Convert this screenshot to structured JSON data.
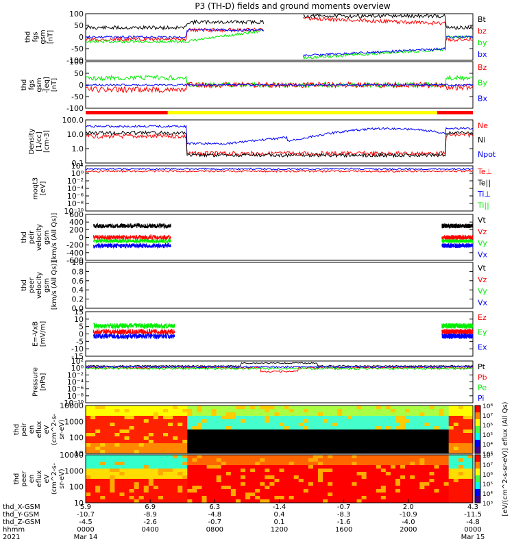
{
  "title": "P3 (TH-D) fields and ground moments overview",
  "colors": {
    "black": "#000000",
    "red": "#ff0000",
    "green": "#00ee00",
    "blue": "#0000ff",
    "yellow": "#ffff00"
  },
  "mode_bar": [
    {
      "from": 0,
      "to": 0.212,
      "color": "#ff0000"
    },
    {
      "from": 0.212,
      "to": 0.908,
      "color": "#ffff00"
    },
    {
      "from": 0.908,
      "to": 1,
      "color": "#ff0000"
    }
  ],
  "chart_data": [
    {
      "type": "line",
      "id": "p1",
      "ylabel": [
        "thd",
        "fgs",
        "gsm",
        "[nT]"
      ],
      "yticks": [
        "100",
        "50",
        "0",
        "-50",
        "-100"
      ],
      "legend": [
        {
          "text": "Bt",
          "color": "#000000"
        },
        {
          "text": "bz",
          "color": "#ff0000"
        },
        {
          "text": "by",
          "color": "#00ee00"
        },
        {
          "text": "bx",
          "color": "#0000ff"
        }
      ]
    },
    {
      "type": "line",
      "id": "p2",
      "ylabel": [
        "thd",
        "fgs",
        "gsm",
        "-[eq]",
        "[nT]"
      ],
      "yticks": [
        "100",
        "50",
        "0",
        "-50",
        "-100"
      ],
      "legend": [
        {
          "text": "Bz",
          "color": "#ff0000"
        },
        {
          "text": "By",
          "color": "#00ee00"
        },
        {
          "text": "Bx",
          "color": "#0000ff"
        }
      ]
    },
    {
      "type": "line",
      "id": "p3",
      "ylabel": [
        "Density",
        "[1/cc]",
        "[cm-3]"
      ],
      "yticks": [
        "100.0",
        "10.0",
        "1.0",
        "0.1"
      ],
      "legend": [
        {
          "text": "Ne",
          "color": "#ff0000"
        },
        {
          "text": "Ni",
          "color": "#000000"
        },
        {
          "text": "Npot",
          "color": "#0000ff"
        }
      ]
    },
    {
      "type": "line",
      "id": "p4",
      "ylabel": [
        "moqt3",
        "[eV]"
      ],
      "yticks": [
        "10²",
        "10⁰",
        "10⁻²",
        "10⁻⁴",
        "10⁻⁶",
        "10⁻⁸",
        "10⁻¹⁰"
      ],
      "legend": [
        {
          "text": "Te⊥",
          "color": "#ff0000"
        },
        {
          "text": "Te||",
          "color": "#000000"
        },
        {
          "text": "Ti⊥",
          "color": "#0000ff"
        },
        {
          "text": "Ti||",
          "color": "#00ee00"
        }
      ]
    },
    {
      "type": "line",
      "id": "p5",
      "ylabel": [
        "thd",
        "peir",
        "velocity",
        "gsm",
        "[km/s (All Qs)]"
      ],
      "yticks": [
        "600",
        "400",
        "200",
        "0",
        "-200",
        "-400",
        "-600"
      ],
      "legend": [
        {
          "text": "Vt",
          "color": "#000000"
        },
        {
          "text": "Vz",
          "color": "#ff0000"
        },
        {
          "text": "Vy",
          "color": "#00ee00"
        },
        {
          "text": "Vx",
          "color": "#0000ff"
        }
      ]
    },
    {
      "type": "line",
      "id": "p6",
      "ylabel": [
        "thd",
        "peer",
        "velocity",
        "gsm",
        "[km/s (All Qs)]"
      ],
      "yticks": [
        "1.0",
        "0.8",
        "0.6",
        "0.4",
        "0.2",
        "0.0"
      ],
      "legend": [
        {
          "text": "Vt",
          "color": "#000000"
        },
        {
          "text": "Vz",
          "color": "#ff0000"
        },
        {
          "text": "Vy",
          "color": "#00ee00"
        },
        {
          "text": "Vx",
          "color": "#0000ff"
        }
      ]
    },
    {
      "type": "line",
      "id": "p7",
      "ylabel": [
        "E=-VxB",
        "[mV/m]"
      ],
      "yticks": [
        "15",
        "10",
        "5",
        "0",
        "-5",
        "-10",
        "-15"
      ],
      "legend": [
        {
          "text": "Ez",
          "color": "#ff0000"
        },
        {
          "text": "Ey",
          "color": "#00ee00"
        },
        {
          "text": "Ex",
          "color": "#0000ff"
        }
      ]
    },
    {
      "type": "line",
      "id": "p8",
      "ylabel": [
        "Pressure",
        "[nPa]"
      ],
      "yticks": [
        "10²",
        "10⁰",
        "10⁻²",
        "10⁻⁴",
        "10⁻⁶",
        "10⁻⁸",
        "10⁻¹⁰"
      ],
      "legend": [
        {
          "text": "Pt",
          "color": "#000000"
        },
        {
          "text": "Pb",
          "color": "#ff0000"
        },
        {
          "text": "Pe",
          "color": "#00ee00"
        },
        {
          "text": "Pi",
          "color": "#0000ff"
        }
      ]
    },
    {
      "type": "heatmap",
      "id": "p9",
      "ylabel": [
        "thd",
        "peir",
        "en",
        "eflux",
        "eV",
        "(cm^2-s-",
        "sr-eV)"
      ],
      "yticks": [
        "10000",
        "1000",
        "100",
        "10"
      ],
      "colorbar_ticks": [
        "10⁸",
        "10⁷",
        "10⁶",
        "10⁵",
        "10⁴",
        "10³"
      ]
    },
    {
      "type": "heatmap",
      "id": "p10",
      "ylabel": [
        "thd",
        "peer",
        "en",
        "eflux",
        "eV",
        "(cm^2-s-",
        "sr-eV)"
      ],
      "yticks": [
        "10000",
        "1000",
        "100",
        "10"
      ],
      "colorbar_ticks": [
        "10⁸",
        "10⁷",
        "10⁶",
        "10⁵",
        "10⁴",
        "10³"
      ]
    }
  ],
  "colorbar_label": "[eV/(cm^2-s-sr-eV)]  eflux (All Qs)",
  "xaxis": {
    "row_labels": [
      "thd_X-GSM",
      "thd_Y-GSM",
      "thd_Z-GSM",
      "hhmm",
      "2021"
    ],
    "ticks": [
      {
        "x": [
          "5.9",
          "-10.7",
          "-4.5"
        ],
        "hhmm": "0000",
        "date": "Mar 14"
      },
      {
        "x": [
          "6.9",
          "-8.9",
          "-2.6"
        ],
        "hhmm": "0400",
        "date": ""
      },
      {
        "x": [
          "6.3",
          "-4.8",
          "-0.7"
        ],
        "hhmm": "0800",
        "date": ""
      },
      {
        "x": [
          "-1.4",
          "0.4",
          "0.1"
        ],
        "hhmm": "1200",
        "date": ""
      },
      {
        "x": [
          "-0.7",
          "-8.3",
          "-1.6"
        ],
        "hhmm": "1600",
        "date": ""
      },
      {
        "x": [
          "2.0",
          "-10.9",
          "-4.0"
        ],
        "hhmm": "2000",
        "date": ""
      },
      {
        "x": [
          "4.3",
          "-11.5",
          "-4.8"
        ],
        "hhmm": "0000",
        "date": "Mar 15"
      }
    ]
  }
}
